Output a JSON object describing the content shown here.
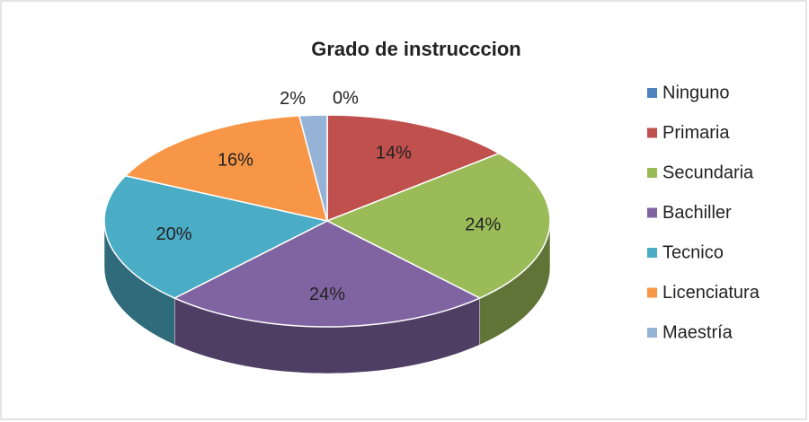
{
  "chart_data": {
    "type": "pie3d",
    "title": "Grado de instrucccion",
    "categories": [
      "Ninguno",
      "Primaria",
      "Secundaria",
      "Bachiller",
      "Tecnico",
      "Licenciatura",
      "Maestría"
    ],
    "values": [
      0,
      14,
      24,
      24,
      20,
      16,
      2
    ],
    "value_labels": [
      "0%",
      "14%",
      "24%",
      "24%",
      "20%",
      "16%",
      "2%"
    ],
    "colors": [
      "#4f81bd",
      "#c0504d",
      "#9bbb59",
      "#8064a2",
      "#4bacc6",
      "#f79646",
      "#95b3d7"
    ],
    "legend": "right"
  }
}
